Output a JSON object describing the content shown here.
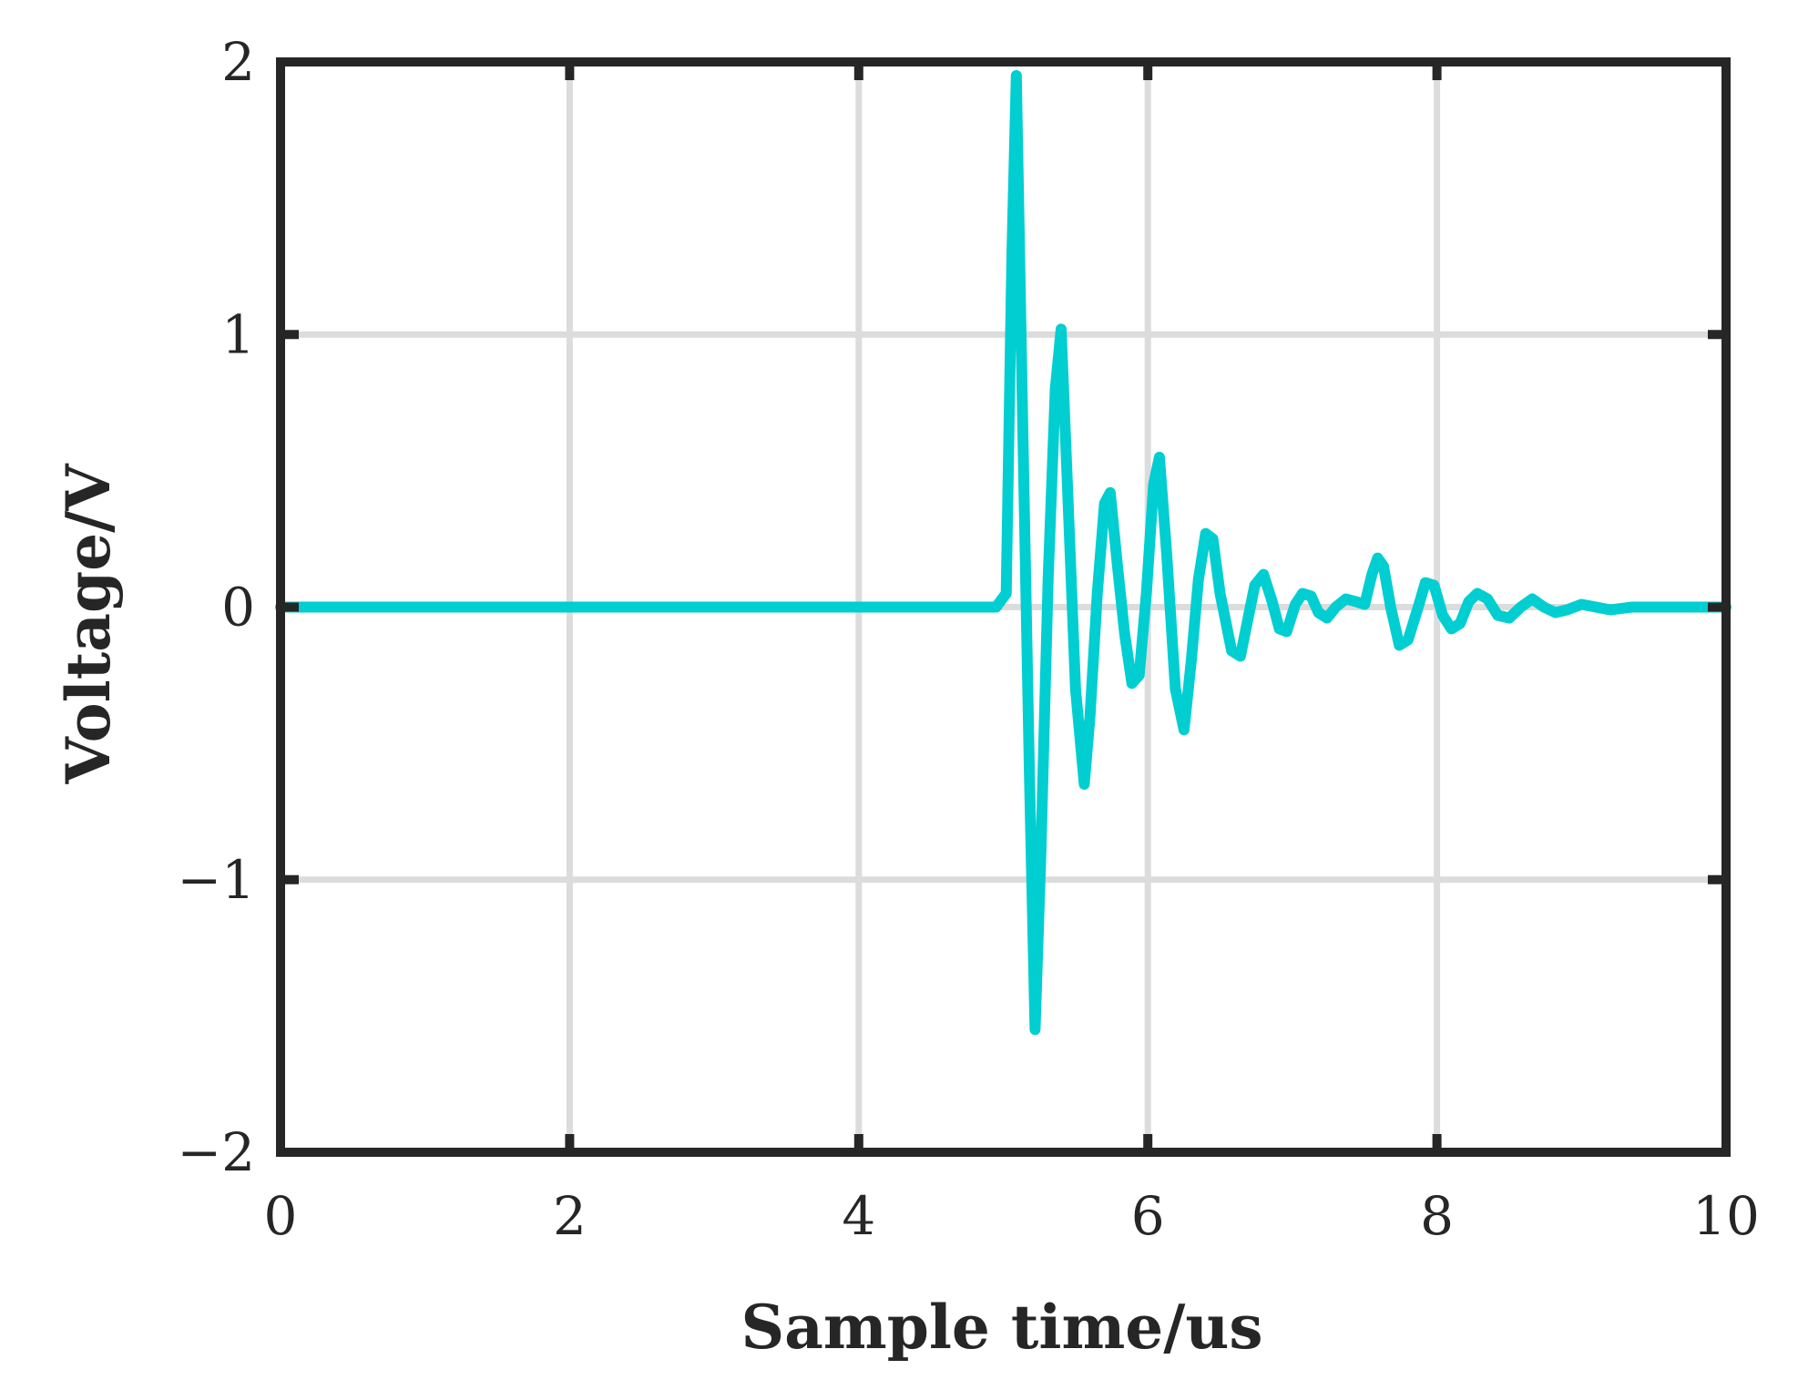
{
  "chart_data": {
    "type": "line",
    "title": "",
    "xlabel": "Sample time/us",
    "ylabel": "Voltage/V",
    "xlim": [
      0,
      10
    ],
    "ylim": [
      -2,
      2
    ],
    "xticks": [
      0,
      2,
      4,
      6,
      8,
      10
    ],
    "yticks": [
      -2,
      -1,
      0,
      1,
      2
    ],
    "xtick_labels": [
      "0",
      "2",
      "4",
      "6",
      "8",
      "10"
    ],
    "ytick_labels": [
      "−2",
      "−1",
      "0",
      "1",
      "2"
    ],
    "grid": true,
    "legend": "none",
    "colors": {
      "line": "#00CED1",
      "axes": "#262626",
      "grid": "#DCDCDC"
    },
    "series": [
      {
        "x": [
          0,
          4.95,
          5.02,
          5.06,
          5.09,
          5.13,
          5.18,
          5.22,
          5.26,
          5.31,
          5.36,
          5.4,
          5.44,
          5.5,
          5.56,
          5.6,
          5.65,
          5.7,
          5.74,
          5.79,
          5.84,
          5.89,
          5.94,
          5.99,
          6.04,
          6.08,
          6.13,
          6.19,
          6.25,
          6.3,
          6.35,
          6.4,
          6.45,
          6.5,
          6.58,
          6.64,
          6.69,
          6.74,
          6.8,
          6.86,
          6.91,
          6.96,
          7.02,
          7.07,
          7.13,
          7.18,
          7.24,
          7.3,
          7.37,
          7.44,
          7.5,
          7.55,
          7.59,
          7.63,
          7.68,
          7.74,
          7.8,
          7.87,
          7.92,
          7.98,
          8.04,
          8.1,
          8.16,
          8.22,
          8.28,
          8.35,
          8.42,
          8.5,
          8.58,
          8.66,
          8.74,
          8.82,
          8.9,
          9.0,
          9.1,
          9.2,
          9.35,
          9.5,
          9.7,
          10.0
        ],
        "y": [
          0,
          0,
          0.05,
          1.3,
          1.95,
          0.8,
          -0.6,
          -1.55,
          -0.9,
          0.1,
          0.8,
          1.02,
          0.5,
          -0.3,
          -0.65,
          -0.4,
          0.05,
          0.38,
          0.42,
          0.15,
          -0.1,
          -0.28,
          -0.25,
          0.05,
          0.45,
          0.55,
          0.2,
          -0.3,
          -0.45,
          -0.2,
          0.1,
          0.27,
          0.25,
          0.05,
          -0.16,
          -0.18,
          -0.05,
          0.08,
          0.12,
          0.02,
          -0.08,
          -0.09,
          0.01,
          0.05,
          0.04,
          -0.02,
          -0.04,
          0.0,
          0.03,
          0.02,
          0.01,
          0.12,
          0.18,
          0.15,
          0.0,
          -0.14,
          -0.12,
          0.0,
          0.09,
          0.08,
          -0.03,
          -0.08,
          -0.06,
          0.02,
          0.05,
          0.03,
          -0.03,
          -0.04,
          0.0,
          0.03,
          0.0,
          -0.02,
          -0.01,
          0.01,
          0.0,
          -0.01,
          0.0,
          0.0,
          0.0,
          0.0
        ]
      }
    ]
  }
}
